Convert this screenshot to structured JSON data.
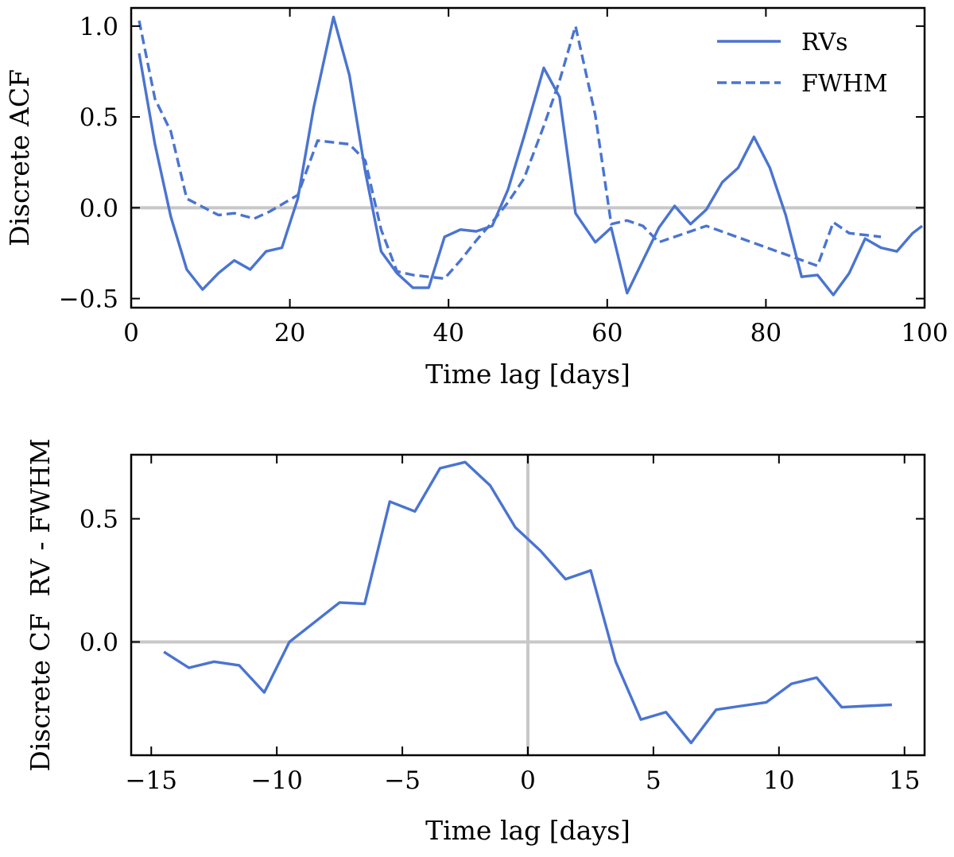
{
  "colors": {
    "series": "#4a74d0",
    "reference": "#c8c8c8",
    "axis": "#000000"
  },
  "chart_data": [
    {
      "type": "line",
      "xlabel": "Time lag [days]",
      "ylabel": "Discrete ACF",
      "xlim": [
        0,
        100
      ],
      "ylim": [
        -0.55,
        1.1
      ],
      "xticks": [
        0,
        20,
        40,
        60,
        80,
        100
      ],
      "xtick_labels": [
        "0",
        "20",
        "40",
        "60",
        "80",
        "100"
      ],
      "yticks": [
        -0.5,
        0.0,
        0.5,
        1.0
      ],
      "ytick_labels": [
        "−0.5",
        "0.0",
        "0.5",
        "1.0"
      ],
      "hline": 0,
      "legend": {
        "placement": "top-right",
        "entries": [
          "RVs",
          "FWHM"
        ]
      },
      "series": [
        {
          "name": "RVs",
          "style": "solid",
          "x": [
            1,
            3,
            5,
            7,
            9,
            11,
            13,
            15,
            17,
            19,
            21,
            23,
            25.5,
            27.5,
            29.5,
            31.5,
            33.5,
            35.5,
            37.5,
            39.5,
            41.5,
            43.5,
            45.5,
            47.5,
            49.5,
            52,
            54,
            56,
            58.5,
            60.5,
            62.5,
            64.5,
            66.5,
            68.5,
            70.5,
            72.5,
            74.5,
            76.5,
            78.5,
            80.5,
            82.5,
            84.5,
            86.5,
            88.5,
            90.5,
            92.5,
            94.5,
            96.5,
            98.5,
            99.7
          ],
          "y": [
            0.85,
            0.35,
            -0.05,
            -0.34,
            -0.45,
            -0.36,
            -0.29,
            -0.34,
            -0.24,
            -0.22,
            0.05,
            0.55,
            1.05,
            0.73,
            0.2,
            -0.24,
            -0.36,
            -0.44,
            -0.44,
            -0.16,
            -0.12,
            -0.13,
            -0.1,
            0.1,
            0.39,
            0.77,
            0.61,
            -0.03,
            -0.19,
            -0.11,
            -0.47,
            -0.29,
            -0.11,
            0.01,
            -0.09,
            -0.01,
            0.14,
            0.22,
            0.39,
            0.22,
            -0.04,
            -0.38,
            -0.37,
            -0.48,
            -0.36,
            -0.17,
            -0.22,
            -0.24,
            -0.14,
            -0.1
          ]
        },
        {
          "name": "FWHM",
          "style": "dashed",
          "x": [
            1,
            3,
            5,
            7,
            11,
            13,
            15.5,
            17.5,
            21,
            23.5,
            27.5,
            29.5,
            31.5,
            33.5,
            35.5,
            37.5,
            39.5,
            41.5,
            43.5,
            45.5,
            47.5,
            49.5,
            52,
            54,
            56,
            58.5,
            60.5,
            62.5,
            64.5,
            66.5,
            72.5,
            86.5,
            88.5,
            90.5,
            92.5,
            94.5
          ],
          "y": [
            1.03,
            0.6,
            0.42,
            0.05,
            -0.04,
            -0.03,
            -0.06,
            -0.02,
            0.07,
            0.37,
            0.35,
            0.26,
            -0.12,
            -0.35,
            -0.37,
            -0.38,
            -0.39,
            -0.29,
            -0.18,
            -0.08,
            0.03,
            0.16,
            0.45,
            0.7,
            1.0,
            0.51,
            -0.09,
            -0.07,
            -0.1,
            -0.19,
            -0.1,
            -0.32,
            -0.08,
            -0.14,
            -0.15,
            -0.16
          ]
        }
      ]
    },
    {
      "type": "line",
      "xlabel": "Time lag [days]",
      "ylabel": "Discrete CF  RV - FWHM",
      "xlim": [
        -15.8,
        15.8
      ],
      "ylim": [
        -0.46,
        0.76
      ],
      "xticks": [
        -15,
        -10,
        -5,
        0,
        5,
        10,
        15
      ],
      "xtick_labels": [
        "−15",
        "−10",
        "−5",
        "0",
        "5",
        "10",
        "15"
      ],
      "yticks": [
        0.0,
        0.5
      ],
      "ytick_labels": [
        "0.0",
        "0.5"
      ],
      "hline": 0,
      "vline": 0,
      "series": [
        {
          "name": "RV - FWHM",
          "style": "solid",
          "x": [
            -14.5,
            -13.5,
            -12.5,
            -11.5,
            -10.5,
            -9.5,
            -8.5,
            -7.5,
            -6.5,
            -5.5,
            -4.5,
            -3.5,
            -2.5,
            -1.5,
            -0.5,
            0.5,
            1.5,
            2.5,
            3.5,
            4.5,
            5.5,
            6.5,
            7.5,
            8.5,
            9.5,
            10.5,
            11.5,
            12.5,
            13.5,
            14.5
          ],
          "y": [
            -0.04,
            -0.105,
            -0.08,
            -0.095,
            -0.205,
            0.0,
            0.08,
            0.16,
            0.155,
            0.57,
            0.53,
            0.705,
            0.73,
            0.635,
            0.465,
            0.37,
            0.255,
            0.29,
            -0.08,
            -0.315,
            -0.285,
            -0.41,
            -0.275,
            -0.26,
            -0.245,
            -0.17,
            -0.145,
            -0.265,
            -0.26,
            -0.255
          ]
        }
      ]
    }
  ]
}
